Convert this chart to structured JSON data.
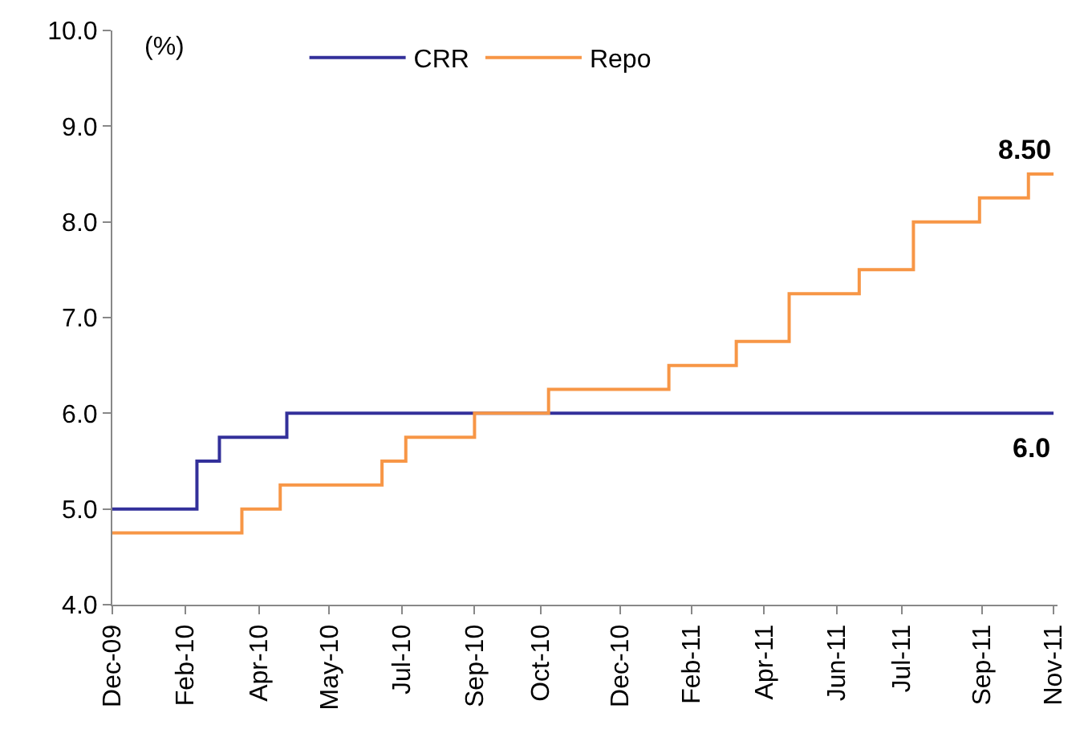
{
  "chart_data": {
    "type": "step",
    "ylabel": "(%)",
    "xlim": [
      "2009-12-11",
      "2011-11-26"
    ],
    "xticks": [
      {
        "value": "2009-12-11",
        "label": "Dec-09"
      },
      {
        "value": "2010-02-04",
        "label": "Feb-10"
      },
      {
        "value": "2010-04-01",
        "label": "Apr-10"
      },
      {
        "value": "2010-05-24",
        "label": "May-10"
      },
      {
        "value": "2010-07-18",
        "label": "Jul-10"
      },
      {
        "value": "2010-09-11",
        "label": "Sep-10"
      },
      {
        "value": "2010-10-31",
        "label": "Oct-10"
      },
      {
        "value": "2010-12-30",
        "label": "Dec-10"
      },
      {
        "value": "2011-02-22",
        "label": "Feb-11"
      },
      {
        "value": "2011-04-18",
        "label": "Apr-11"
      },
      {
        "value": "2011-06-12",
        "label": "Jun-11"
      },
      {
        "value": "2011-07-31",
        "label": "Jul-11"
      },
      {
        "value": "2011-09-30",
        "label": "Sep-11"
      },
      {
        "value": "2011-11-23",
        "label": "Nov-11"
      }
    ],
    "ylim": [
      4,
      10
    ],
    "yticks": [
      {
        "value": 4,
        "label": "4.0"
      },
      {
        "value": 5,
        "label": "5.0"
      },
      {
        "value": 6,
        "label": "6.0"
      },
      {
        "value": 7,
        "label": "7.0"
      },
      {
        "value": 8,
        "label": "8.0"
      },
      {
        "value": 9,
        "label": "9.0"
      },
      {
        "value": 10,
        "label": "10.0"
      }
    ],
    "series": [
      {
        "name": "CRR",
        "color": "#33309a",
        "x": [
          "2009-12-11",
          "2010-02-13",
          "2010-03-02",
          "2010-04-22",
          "2011-11-23"
        ],
        "values": [
          5.0,
          5.5,
          5.75,
          6.0,
          6.0
        ]
      },
      {
        "name": "Repo",
        "color": "#f79646",
        "x": [
          "2009-12-11",
          "2010-03-19",
          "2010-04-17",
          "2010-07-03",
          "2010-07-21",
          "2010-09-11",
          "2010-11-06",
          "2011-02-05",
          "2011-03-28",
          "2011-05-07",
          "2011-06-29",
          "2011-08-09",
          "2011-09-28",
          "2011-11-04",
          "2011-11-23"
        ],
        "values": [
          4.75,
          5.0,
          5.25,
          5.5,
          5.75,
          6.0,
          6.25,
          6.5,
          6.75,
          7.25,
          7.5,
          8.0,
          8.25,
          8.5,
          8.5
        ]
      }
    ],
    "annotations": [
      {
        "text": "8.50",
        "x": "2011-11-23",
        "y": 8.5
      },
      {
        "text": "6.0",
        "x": "2011-11-23",
        "y": 6.0
      }
    ],
    "legend": "top",
    "grid": false,
    "line_style": "solid",
    "marker": "none"
  }
}
